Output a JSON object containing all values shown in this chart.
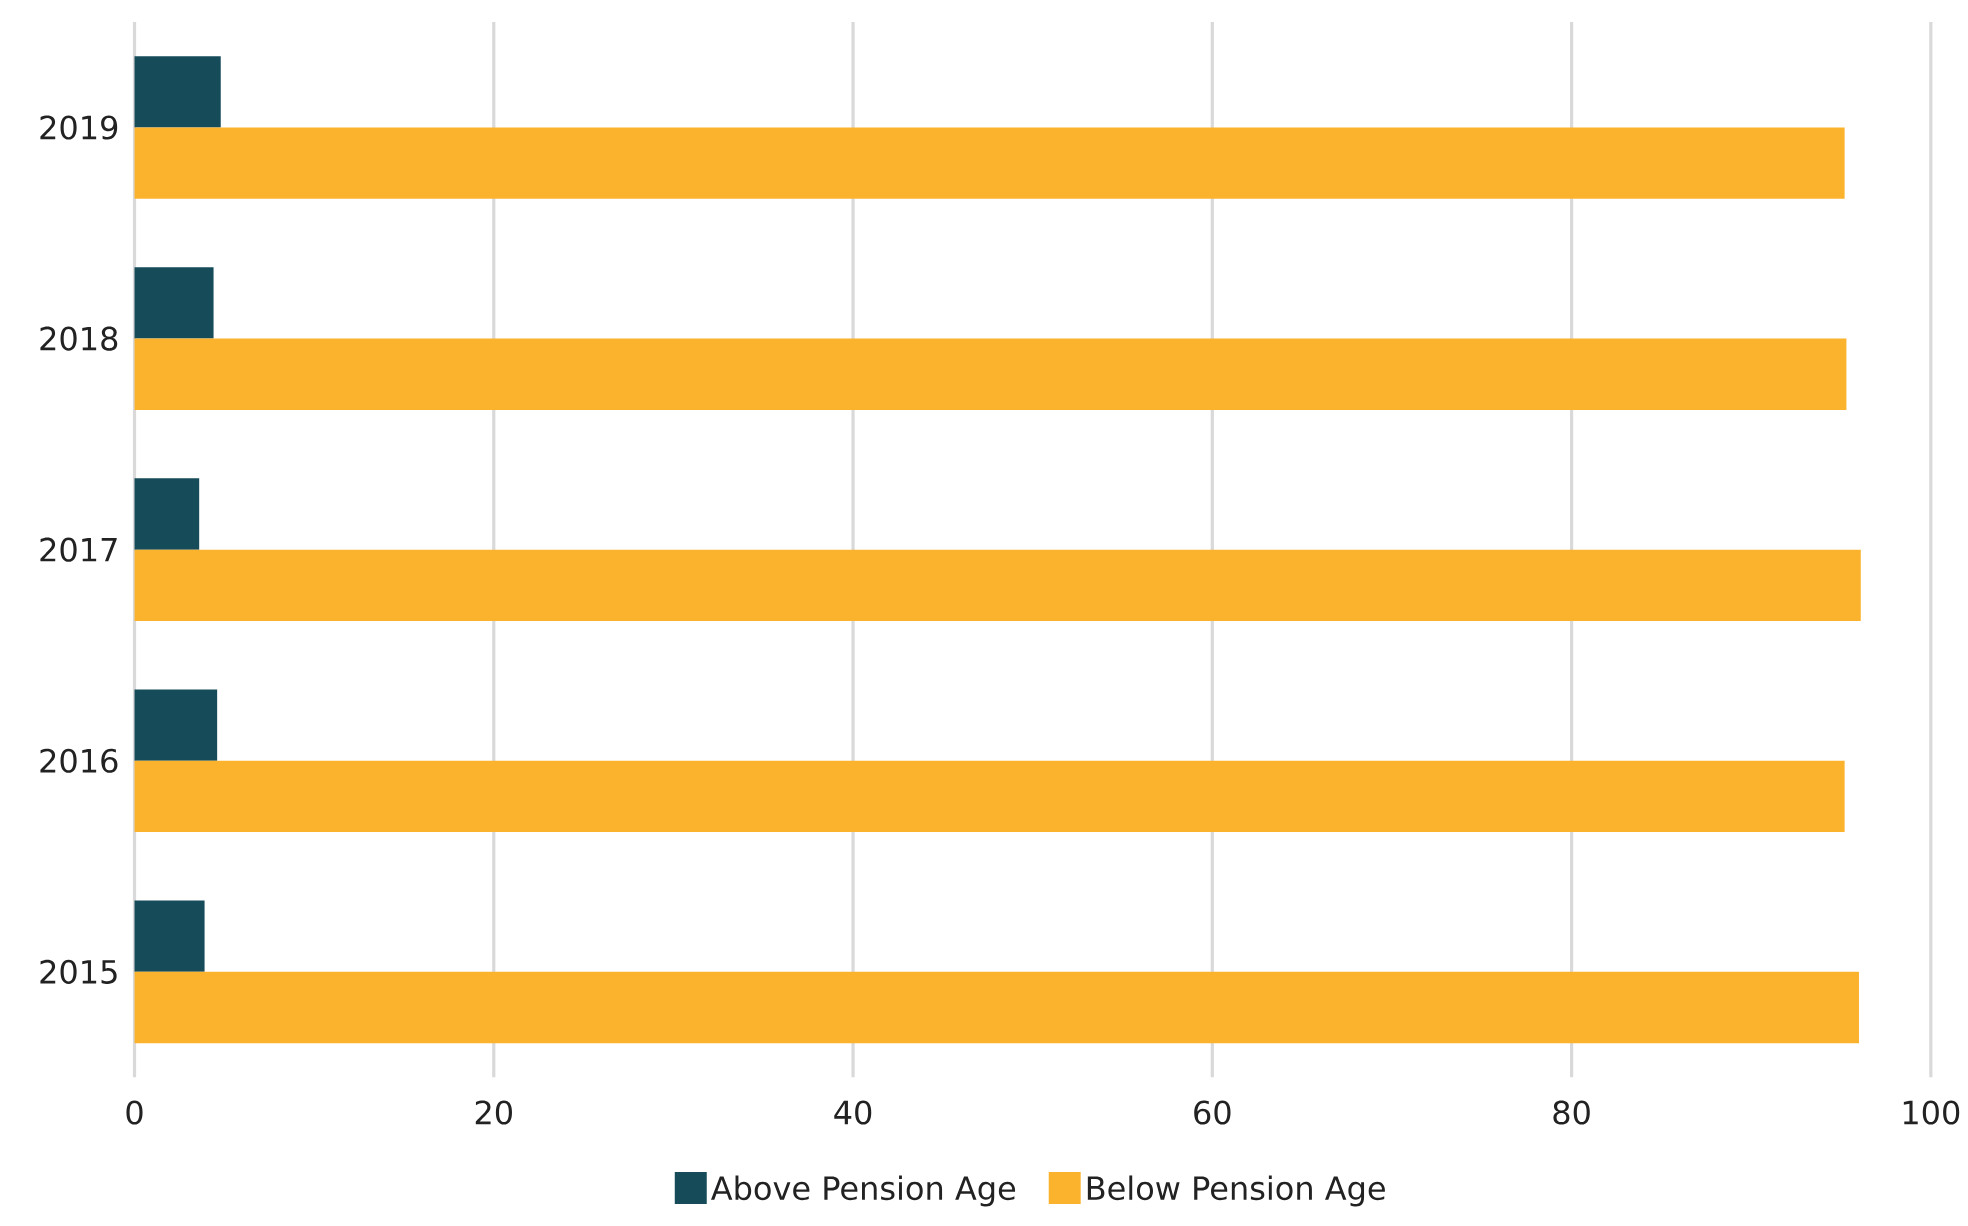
{
  "chart_data": {
    "type": "bar",
    "orientation": "horizontal",
    "categories": [
      "2019",
      "2018",
      "2017",
      "2016",
      "2015"
    ],
    "series": [
      {
        "name": "Above Pension Age",
        "color": "#164b59",
        "values": [
          4.8,
          4.4,
          3.6,
          4.6,
          3.9
        ]
      },
      {
        "name": "Below Pension Age",
        "color": "#fbb32e",
        "values": [
          95.2,
          95.3,
          96.1,
          95.2,
          96.0
        ]
      }
    ],
    "xlim": [
      0,
      100
    ],
    "xticks": [
      0,
      20,
      40,
      60,
      80,
      100
    ],
    "grid": "x",
    "legend": "bottom"
  }
}
